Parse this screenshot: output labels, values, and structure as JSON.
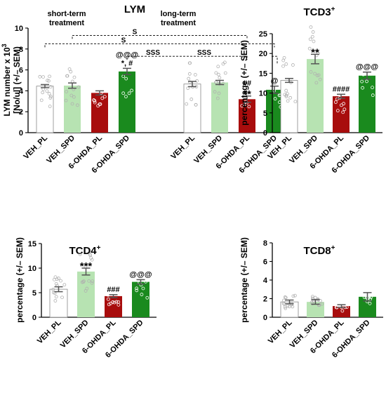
{
  "colors": {
    "VEH_PL": "#ffffff",
    "VEH_SPD": "#b7e3b2",
    "6-OHDA_PL": "#a80d0d",
    "6-OHDA_SPD": "#1a8a1e",
    "point_light": "#b0b0b0"
  },
  "chart_data": [
    {
      "type": "bar",
      "title": "LYM",
      "ylabel_line1": "LYM number x 10",
      "ylabel_sup": "3",
      "ylabel_line2": "[No/ul] (+/– SEM)",
      "ylim": [
        0,
        10
      ],
      "yticks": [
        0,
        2,
        4,
        6,
        8,
        10
      ],
      "grid": false,
      "groups": [
        {
          "label_line1": "short-term",
          "label_line2": "treatment"
        },
        {
          "label_line1": "long-term",
          "label_line2": "treatment"
        }
      ],
      "categories": [
        "VEH_PL",
        "VEH_SPD",
        "6-OHDA_PL",
        "6-OHDA_SPD",
        "VEH_PL",
        "VEH_SPD",
        "6-OHDA_PL",
        "6-OHDA_SPD"
      ],
      "values": [
        4.45,
        4.5,
        3.8,
        5.85,
        4.65,
        4.8,
        3.2,
        4.1
      ],
      "sem": [
        0.15,
        0.25,
        0.2,
        0.3,
        0.25,
        0.2,
        0.3,
        0.35
      ],
      "annotations": [
        {
          "bar": 3,
          "lines": [
            "*, #",
            "@@@"
          ]
        },
        {
          "bar": 6,
          "lines": [
            "**",
            "##"
          ]
        },
        {
          "bar": 7,
          "lines": [
            "@"
          ]
        }
      ],
      "comparisons": [
        {
          "from": 1,
          "to": 6,
          "label": "S",
          "level": 9.3
        },
        {
          "from": 0,
          "to": 7,
          "label": "S",
          "level": 8.5
        },
        {
          "from": 3,
          "to": 6,
          "label": "SSS",
          "level": 7.3
        },
        {
          "from": 3,
          "to": 7,
          "label": "SSS",
          "level": 7.3
        }
      ]
    },
    {
      "type": "bar",
      "title": "TCD3",
      "title_sup": "+",
      "ylabel_line1": "percentage (+/– SEM)",
      "ylim": [
        0,
        25
      ],
      "yticks": [
        0,
        5,
        10,
        15,
        20,
        25
      ],
      "grid": false,
      "categories": [
        "VEH_PL",
        "VEH_SPD",
        "6-OHDA_PL",
        "6-OHDA_SPD"
      ],
      "values": [
        13.2,
        18.6,
        9.2,
        14.4
      ],
      "sem": [
        0.5,
        1.2,
        0.5,
        0.9
      ],
      "annotations": [
        {
          "bar": 1,
          "lines": [
            "**"
          ]
        },
        {
          "bar": 2,
          "lines": [
            "####"
          ]
        },
        {
          "bar": 3,
          "lines": [
            "@@@"
          ]
        }
      ]
    },
    {
      "type": "bar",
      "title": "TCD4",
      "title_sup": "+",
      "ylabel_line1": "percentage (+/– SEM)",
      "ylim": [
        0,
        15
      ],
      "yticks": [
        0,
        5,
        10,
        15
      ],
      "grid": false,
      "categories": [
        "VEH_PL",
        "VEH_SPD",
        "6-OHDA_PL",
        "6-OHDA_SPD"
      ],
      "values": [
        5.7,
        9.3,
        4.3,
        7.2
      ],
      "sem": [
        0.5,
        0.7,
        0.3,
        0.45
      ],
      "annotations": [
        {
          "bar": 1,
          "lines": [
            "***"
          ]
        },
        {
          "bar": 2,
          "lines": [
            "###"
          ]
        },
        {
          "bar": 3,
          "lines": [
            "@@@"
          ]
        }
      ]
    },
    {
      "type": "bar",
      "title": "TCD8",
      "title_sup": "+",
      "ylabel_line1": "percentage (+/– SEM)",
      "ylim": [
        0,
        8
      ],
      "yticks": [
        0,
        2,
        4,
        6,
        8
      ],
      "grid": false,
      "categories": [
        "VEH_PL",
        "VEH_SPD",
        "6-OHDA_PL",
        "6-OHDA_SPD"
      ],
      "values": [
        1.65,
        1.65,
        1.2,
        2.2
      ],
      "sem": [
        0.2,
        0.25,
        0.15,
        0.45
      ],
      "annotations": []
    }
  ]
}
